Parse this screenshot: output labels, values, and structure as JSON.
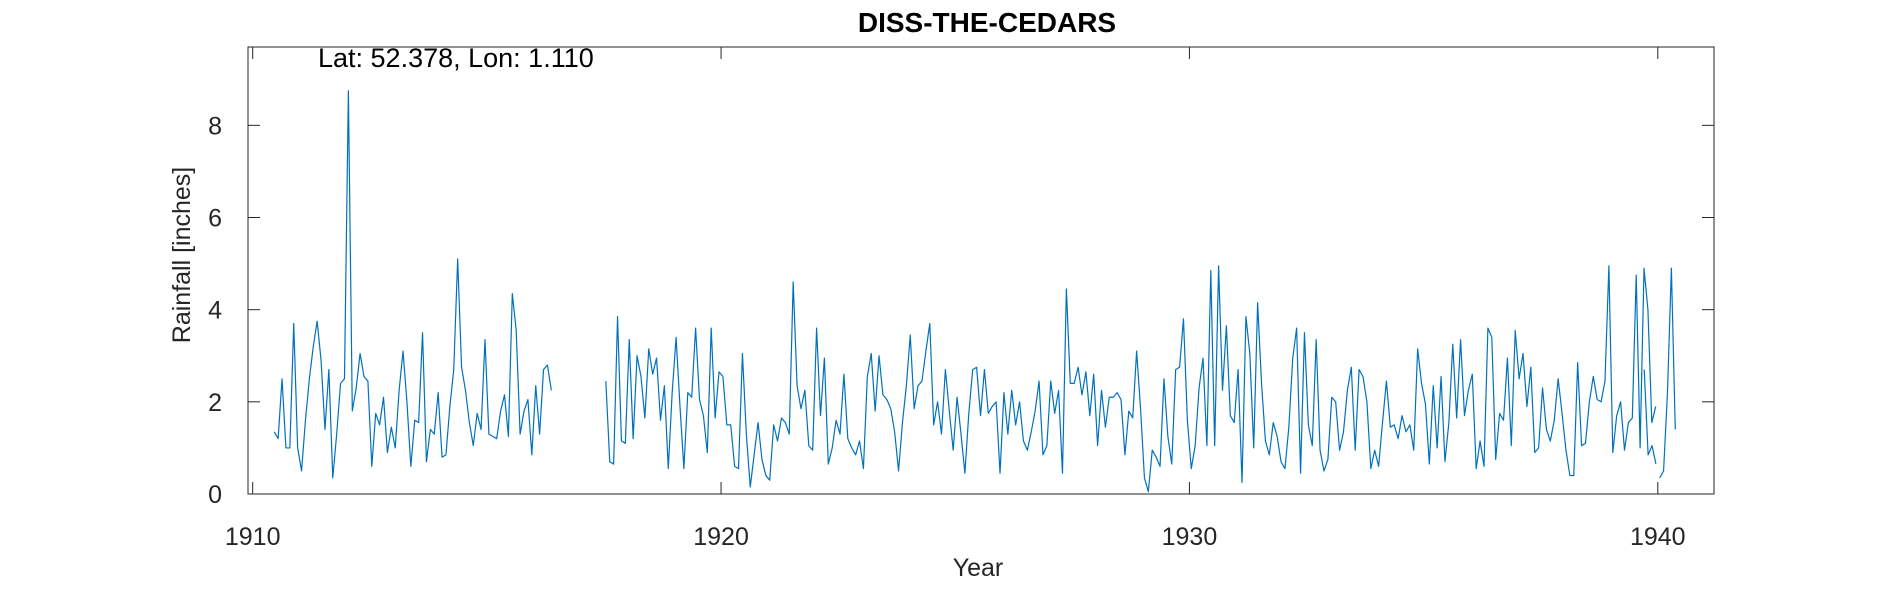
{
  "chart_data": {
    "type": "line",
    "title": "DISS-THE-CEDARS",
    "xlabel": "Year",
    "ylabel": "Rainfall [inches]",
    "annotation": "Lat: 52.378, Lon: 1.110",
    "xlim": [
      1909.9,
      1941.2
    ],
    "ylim": [
      0,
      9.7
    ],
    "xticks": [
      1910,
      1920,
      1930,
      1940
    ],
    "yticks": [
      0,
      2,
      4,
      6,
      8
    ],
    "xtick_labels": [
      "1910",
      "1920",
      "1930",
      "1940"
    ],
    "ytick_labels": [
      "0",
      "2",
      "4",
      "6",
      "8"
    ],
    "grid": false,
    "line_color": "#0072BD",
    "axis_color": "#262626",
    "series": [
      {
        "segments": [
          {
            "start": 1910.46,
            "step": 0.08333,
            "values": [
              1.35,
              1.2,
              2.5,
              1.0,
              1.0,
              3.7,
              1.0,
              0.5,
              1.6,
              2.5,
              3.2,
              3.75,
              2.9,
              1.4,
              2.7,
              0.35,
              1.3,
              2.4,
              2.5,
              8.75,
              1.8,
              2.3,
              3.05,
              2.55,
              2.45,
              0.6,
              1.75,
              1.5,
              2.1,
              0.9,
              1.45,
              1.0,
              2.25,
              3.1,
              2.0,
              0.6,
              1.6,
              1.55,
              3.5,
              0.7,
              1.4,
              1.3,
              2.2,
              0.8,
              0.85,
              1.9,
              2.7,
              5.1,
              2.75,
              2.25,
              1.55,
              1.05,
              1.75,
              1.4,
              3.35,
              1.3,
              1.25,
              1.2,
              1.8,
              2.15,
              1.25,
              4.35,
              3.55,
              1.3,
              1.8,
              2.05,
              0.85,
              2.35,
              1.3,
              2.7,
              2.8,
              2.25
            ]
          },
          {
            "start": 1917.54,
            "step": 0.08333,
            "values": [
              2.45,
              0.7,
              0.65,
              3.85,
              1.15,
              1.1,
              3.35,
              1.2,
              3.0,
              2.55,
              1.65,
              3.15,
              2.6,
              2.95,
              1.6,
              2.35,
              0.55,
              2.2,
              3.4,
              1.9,
              0.55,
              2.2,
              2.1,
              3.6,
              2.05,
              1.7,
              0.9,
              3.6,
              1.65,
              2.65,
              2.55,
              1.5,
              1.5,
              0.6,
              0.55,
              3.05,
              1.3,
              0.15,
              0.85,
              1.55,
              0.75,
              0.4,
              0.3,
              1.5,
              1.15,
              1.65,
              1.55,
              1.3,
              4.6,
              2.35,
              1.85,
              2.25,
              1.05,
              0.95,
              3.6,
              1.7,
              2.95,
              0.65,
              1.0,
              1.6,
              1.3,
              2.6,
              1.2,
              1.0,
              0.85,
              1.15,
              0.55,
              2.55,
              3.05,
              1.8,
              3.0,
              2.15,
              2.05,
              1.85,
              1.35,
              0.5,
              1.55,
              2.35,
              3.45,
              1.85,
              2.35,
              2.45,
              3.1,
              3.7,
              1.5,
              2.0,
              1.3,
              2.7,
              1.8,
              0.95,
              2.1,
              1.3,
              0.45,
              1.75,
              2.7,
              2.75,
              1.7,
              2.7,
              1.75,
              1.9,
              2.0,
              0.45,
              2.2,
              1.3,
              2.25,
              1.5,
              2.0,
              1.15,
              0.95,
              1.35,
              1.8,
              2.45,
              0.85,
              1.05,
              2.45,
              1.75,
              2.25,
              0.45,
              4.45,
              2.4,
              2.4,
              2.75,
              2.15,
              2.65,
              1.7,
              2.6,
              1.05,
              2.25,
              1.45,
              2.1,
              2.1,
              2.2,
              2.05,
              0.85,
              1.8,
              1.65,
              3.1,
              1.85,
              0.35,
              0.05,
              0.95,
              0.8,
              0.6,
              2.5,
              1.25,
              0.65,
              2.7,
              2.75,
              3.8,
              1.6,
              0.55,
              1.05,
              2.3,
              2.95,
              1.05,
              4.85,
              1.05,
              4.95,
              2.25,
              3.65,
              1.7,
              1.55,
              2.7,
              0.25,
              3.85,
              3.05,
              1.0,
              4.15,
              2.4,
              1.15,
              0.85,
              1.55,
              1.25,
              0.7,
              0.55,
              1.45,
              2.95,
              3.6,
              0.45,
              3.5,
              1.5,
              1.05,
              3.35,
              0.95,
              0.5,
              0.75,
              2.1,
              2.0,
              0.95,
              1.35,
              2.25,
              2.75,
              0.95,
              2.7,
              2.55,
              2.0,
              0.55,
              0.95,
              0.6,
              1.55,
              2.45,
              1.45,
              1.5,
              1.2,
              1.7,
              1.35,
              1.5,
              0.95,
              3.15,
              2.4,
              1.95,
              0.65,
              2.35,
              1.0,
              2.55,
              0.7,
              1.55,
              3.25,
              1.65,
              3.35,
              1.7,
              2.25,
              2.6,
              0.55,
              1.15,
              0.6,
              3.6,
              3.4,
              0.75,
              1.75,
              1.6,
              2.95,
              1.05,
              3.55,
              2.5,
              3.05,
              1.9,
              2.75,
              0.9,
              1.0,
              2.3,
              1.4,
              1.15,
              1.6,
              2.5,
              1.75,
              0.95,
              0.4,
              0.4,
              2.85,
              1.05,
              1.1,
              2.0,
              2.55,
              2.05,
              2.0,
              2.45,
              4.95,
              0.9,
              1.7,
              2.0,
              0.95,
              1.55,
              1.65,
              4.75,
              1.0,
              4.9,
              4.0,
              1.55,
              1.9
            ]
          },
          {
            "start": 1939.71,
            "step": 0.08333,
            "values": [
              2.7,
              0.85,
              1.05,
              0.65
            ]
          },
          {
            "start": 1940.04,
            "step": 0.08333,
            "values": [
              0.35,
              0.5,
              2.2,
              4.9,
              1.4
            ]
          }
        ]
      }
    ]
  }
}
